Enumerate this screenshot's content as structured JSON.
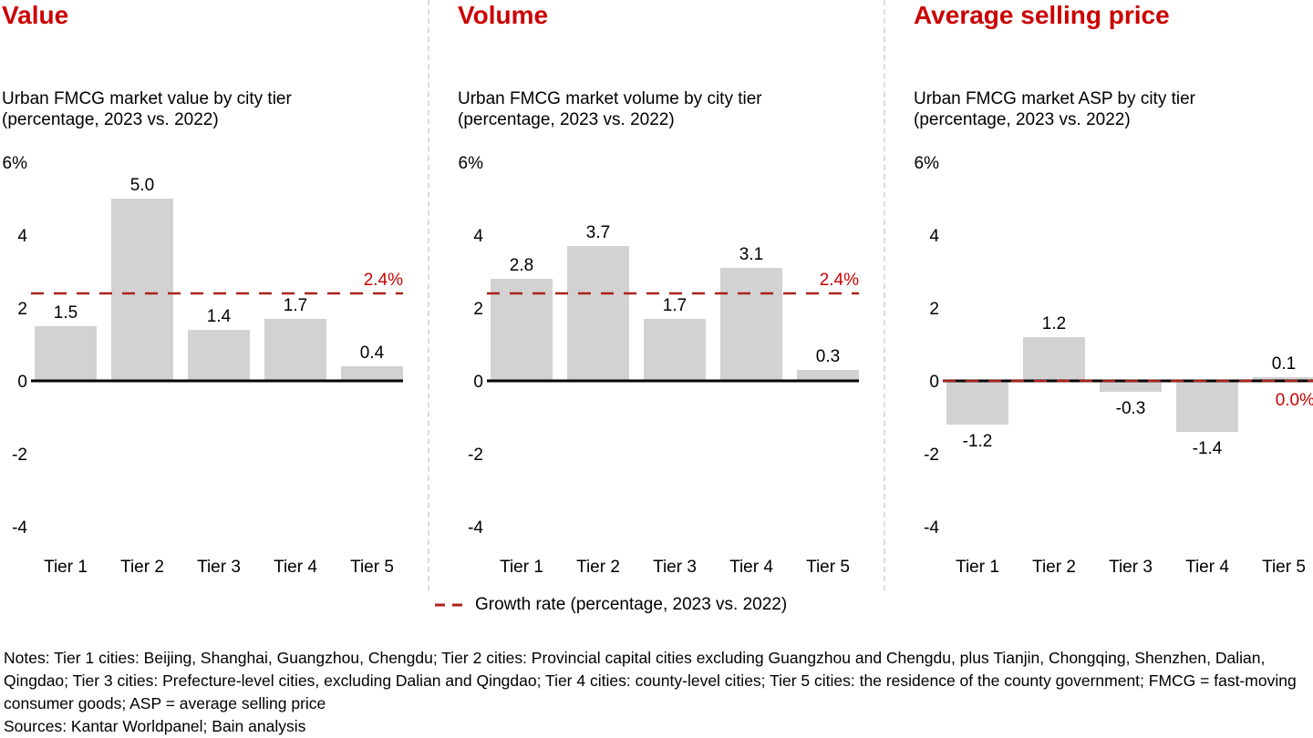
{
  "colors": {
    "title_red": "#cc0000",
    "growth_line_red": "#aa221a",
    "bar_gray": "#d2d2d2",
    "axis_black": "#000000"
  },
  "chart_data": [
    {
      "type": "bar",
      "title": "Value",
      "subtitle_line1": "Urban FMCG market value by city tier",
      "subtitle_line2": "(percentage, 2023 vs. 2022)",
      "categories": [
        "Tier 1",
        "Tier 2",
        "Tier 3",
        "Tier 4",
        "Tier 5"
      ],
      "values": [
        1.5,
        5.0,
        1.4,
        1.7,
        0.4
      ],
      "value_labels": [
        "1.5",
        "5.0",
        "1.4",
        "1.7",
        "0.4"
      ],
      "growth_rate": {
        "value": 2.4,
        "label": "2.4%",
        "label_position": "above"
      },
      "ylim": [
        -4,
        6
      ],
      "grid": false,
      "y_ticks": [
        {
          "value": 6,
          "label": "6%"
        },
        {
          "value": 4,
          "label": "4"
        },
        {
          "value": 2,
          "label": "2"
        },
        {
          "value": 0,
          "label": "0"
        },
        {
          "value": -2,
          "label": "-2"
        },
        {
          "value": -4,
          "label": "-4"
        }
      ]
    },
    {
      "type": "bar",
      "title": "Volume",
      "subtitle_line1": "Urban FMCG market volume by city tier",
      "subtitle_line2": "(percentage, 2023 vs. 2022)",
      "categories": [
        "Tier 1",
        "Tier 2",
        "Tier 3",
        "Tier 4",
        "Tier 5"
      ],
      "values": [
        2.8,
        3.7,
        1.7,
        3.1,
        0.3
      ],
      "value_labels": [
        "2.8",
        "3.7",
        "1.7",
        "3.1",
        "0.3"
      ],
      "growth_rate": {
        "value": 2.4,
        "label": "2.4%",
        "label_position": "above"
      },
      "ylim": [
        -4,
        6
      ],
      "grid": false,
      "y_ticks": [
        {
          "value": 6,
          "label": "6%"
        },
        {
          "value": 4,
          "label": "4"
        },
        {
          "value": 2,
          "label": "2"
        },
        {
          "value": 0,
          "label": "0"
        },
        {
          "value": -2,
          "label": "-2"
        },
        {
          "value": -4,
          "label": "-4"
        }
      ]
    },
    {
      "type": "bar",
      "title": "Average selling price",
      "subtitle_line1": "Urban FMCG market ASP by city tier",
      "subtitle_line2": "(percentage, 2023 vs. 2022)",
      "categories": [
        "Tier 1",
        "Tier 2",
        "Tier 3",
        "Tier 4",
        "Tier 5"
      ],
      "values": [
        -1.2,
        1.2,
        -0.3,
        -1.4,
        0.1
      ],
      "value_labels": [
        "-1.2",
        "1.2",
        "-0.3",
        "-1.4",
        "0.1"
      ],
      "growth_rate": {
        "value": 0.0,
        "label": "0.0%",
        "label_position": "below"
      },
      "ylim": [
        -4,
        6
      ],
      "grid": false,
      "y_ticks": [
        {
          "value": 6,
          "label": "6%"
        },
        {
          "value": 4,
          "label": "4"
        },
        {
          "value": 2,
          "label": "2"
        },
        {
          "value": 0,
          "label": "0"
        },
        {
          "value": -2,
          "label": "-2"
        },
        {
          "value": -4,
          "label": "-4"
        }
      ]
    }
  ],
  "legend": {
    "label": "Growth rate (percentage, 2023 vs. 2022)",
    "position": "bottom-center"
  },
  "footer": {
    "notes": "Notes: Tier 1 cities: Beijing, Shanghai, Guangzhou, Chengdu; Tier 2 cities: Provincial capital cities excluding Guangzhou and Chengdu, plus Tianjin, Chongqing, Shenzhen, Dalian, Qingdao; Tier 3 cities: Prefecture-level cities, excluding Dalian and Qingdao; Tier 4 cities: county-level cities; Tier 5 cities: the residence of the county government; FMCG = fast-moving consumer goods; ASP = average selling price",
    "sources": "Sources: Kantar Worldpanel; Bain analysis"
  }
}
